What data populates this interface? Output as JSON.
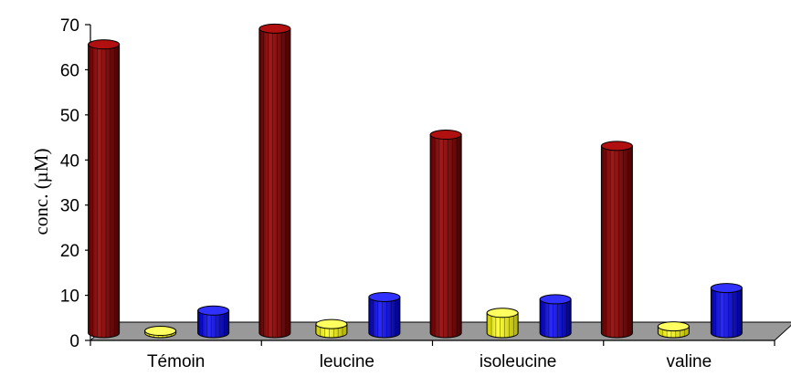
{
  "chart_data": {
    "type": "bar",
    "style": "3d-cylinder",
    "title": "",
    "xlabel": "",
    "ylabel": "conc. (µM)",
    "ylim": [
      0,
      70
    ],
    "yticks": [
      0,
      10,
      20,
      30,
      40,
      50,
      60,
      70
    ],
    "categories": [
      "Témoin",
      "leucine",
      "isoleucine",
      "valine"
    ],
    "series": [
      {
        "color": "#8b0000",
        "values": [
          64,
          67.5,
          44,
          41.5
        ]
      },
      {
        "color": "#ffff00",
        "values": [
          0.5,
          2,
          4.5,
          1.5
        ]
      },
      {
        "color": "#0000ff",
        "values": [
          5,
          8,
          7.5,
          10
        ]
      }
    ],
    "grid": false,
    "legend": "none",
    "floor_color": "#999999"
  }
}
